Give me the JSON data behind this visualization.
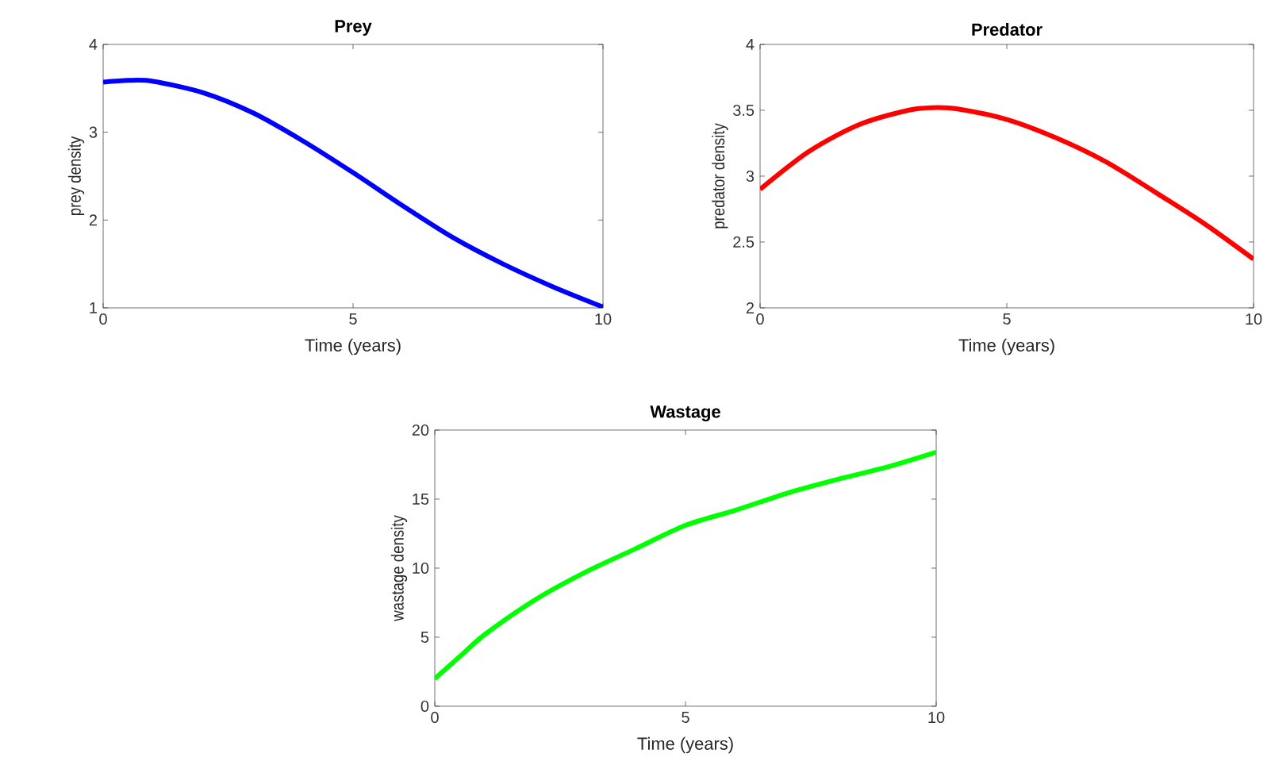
{
  "chart_data": [
    {
      "type": "line",
      "title": "Prey",
      "xlabel": "Time (years)",
      "ylabel": "prey density",
      "color": "#0000ff",
      "x": [
        0,
        0.5,
        1,
        2,
        3,
        4,
        5,
        6,
        7,
        8,
        9,
        10
      ],
      "values": [
        3.57,
        3.59,
        3.58,
        3.45,
        3.22,
        2.9,
        2.54,
        2.16,
        1.8,
        1.5,
        1.24,
        1.01
      ],
      "xlim": [
        0,
        10
      ],
      "ylim": [
        1,
        4
      ],
      "xticks": [
        0,
        5,
        10
      ],
      "yticks": [
        1,
        2,
        3,
        4
      ]
    },
    {
      "type": "line",
      "title": "Predator",
      "xlabel": "Time (years)",
      "ylabel": "predator density",
      "color": "#ff0000",
      "x": [
        0,
        1,
        2,
        3,
        3.5,
        4,
        5,
        6,
        7,
        8,
        9,
        10
      ],
      "values": [
        2.9,
        3.19,
        3.39,
        3.5,
        3.52,
        3.51,
        3.43,
        3.29,
        3.11,
        2.88,
        2.64,
        2.37
      ],
      "xlim": [
        0,
        10
      ],
      "ylim": [
        2,
        4
      ],
      "xticks": [
        0,
        5,
        10
      ],
      "yticks": [
        2,
        2.5,
        3,
        3.5,
        4
      ]
    },
    {
      "type": "line",
      "title": "Wastage",
      "xlabel": "Time (years)",
      "ylabel": "wastage density",
      "color": "#00ff00",
      "x": [
        0,
        0.5,
        1,
        2,
        3,
        4,
        5,
        6,
        7,
        8,
        9,
        10
      ],
      "values": [
        2.0,
        3.6,
        5.2,
        7.7,
        9.7,
        11.4,
        13.1,
        14.2,
        15.4,
        16.4,
        17.3,
        18.4
      ],
      "xlim": [
        0,
        10
      ],
      "ylim": [
        0,
        20
      ],
      "xticks": [
        0,
        5,
        10
      ],
      "yticks": [
        0,
        5,
        10,
        15,
        20
      ]
    }
  ]
}
